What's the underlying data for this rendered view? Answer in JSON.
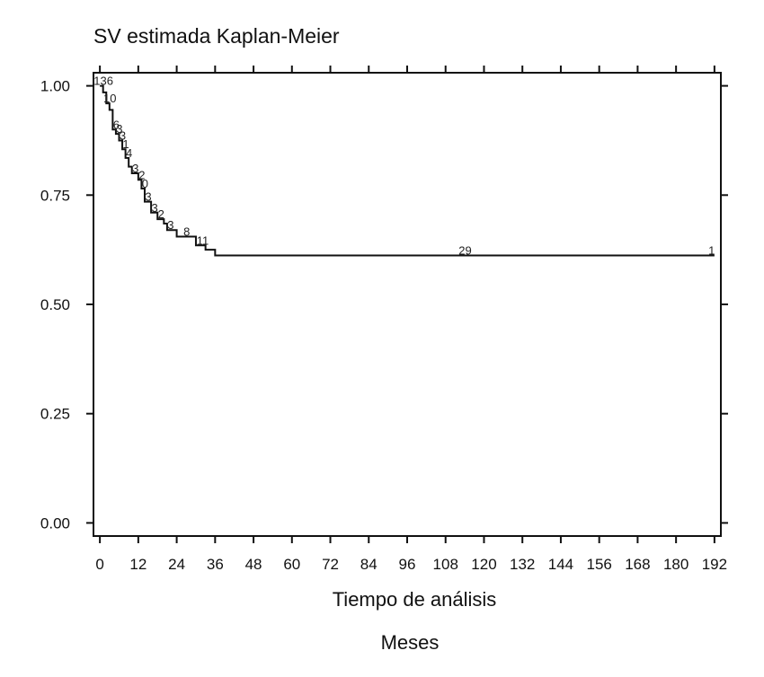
{
  "chart_data": {
    "type": "line",
    "title": "SV estimada Kaplan-Meier",
    "xlabel": "Tiempo de análisis",
    "xlabel2": "Meses",
    "ylabel": "",
    "xlim": [
      -2,
      194
    ],
    "ylim": [
      -0.03,
      1.03
    ],
    "xticks": [
      0,
      12,
      24,
      36,
      48,
      60,
      72,
      84,
      96,
      108,
      120,
      132,
      144,
      156,
      168,
      180,
      192
    ],
    "xtick_labels": [
      "0",
      "12",
      "24",
      "36",
      "48",
      "60",
      "72",
      "84",
      "96",
      "108",
      "120",
      "132",
      "144",
      "156",
      "168",
      "180",
      "192"
    ],
    "yticks": [
      0,
      0.25,
      0.5,
      0.75,
      1.0
    ],
    "ytick_labels": [
      "0.00",
      "0.25",
      "0.50",
      "0.75",
      "1.00"
    ],
    "grid": false,
    "series": [
      {
        "step": "post",
        "x": [
          0,
          1,
          2,
          3,
          4,
          5,
          6,
          7,
          8,
          9,
          10,
          12,
          13,
          14,
          16,
          18,
          20,
          21,
          24,
          30,
          33,
          36,
          192
        ],
        "y": [
          1.0,
          0.985,
          0.96,
          0.945,
          0.9,
          0.89,
          0.875,
          0.855,
          0.835,
          0.815,
          0.8,
          0.785,
          0.765,
          0.735,
          0.71,
          0.695,
          0.685,
          0.67,
          0.655,
          0.635,
          0.625,
          0.612,
          0.612
        ]
      }
    ],
    "annotations": [
      {
        "x": 0,
        "y": 1.0,
        "text": "136"
      },
      {
        "x": 2,
        "y": 0.96,
        "text": "10"
      },
      {
        "x": 4,
        "y": 0.9,
        "text": "6"
      },
      {
        "x": 5,
        "y": 0.89,
        "text": "3"
      },
      {
        "x": 6,
        "y": 0.875,
        "text": "3"
      },
      {
        "x": 7,
        "y": 0.855,
        "text": "1"
      },
      {
        "x": 8,
        "y": 0.835,
        "text": "4"
      },
      {
        "x": 10,
        "y": 0.8,
        "text": "3"
      },
      {
        "x": 12,
        "y": 0.785,
        "text": "2"
      },
      {
        "x": 13,
        "y": 0.765,
        "text": "0"
      },
      {
        "x": 14,
        "y": 0.735,
        "text": "3"
      },
      {
        "x": 16,
        "y": 0.71,
        "text": "3"
      },
      {
        "x": 18,
        "y": 0.695,
        "text": "2"
      },
      {
        "x": 21,
        "y": 0.67,
        "text": "3"
      },
      {
        "x": 26,
        "y": 0.655,
        "text": "8"
      },
      {
        "x": 31,
        "y": 0.635,
        "text": "11"
      },
      {
        "x": 113,
        "y": 0.612,
        "text": "29"
      },
      {
        "x": 190,
        "y": 0.612,
        "text": "1"
      }
    ]
  }
}
